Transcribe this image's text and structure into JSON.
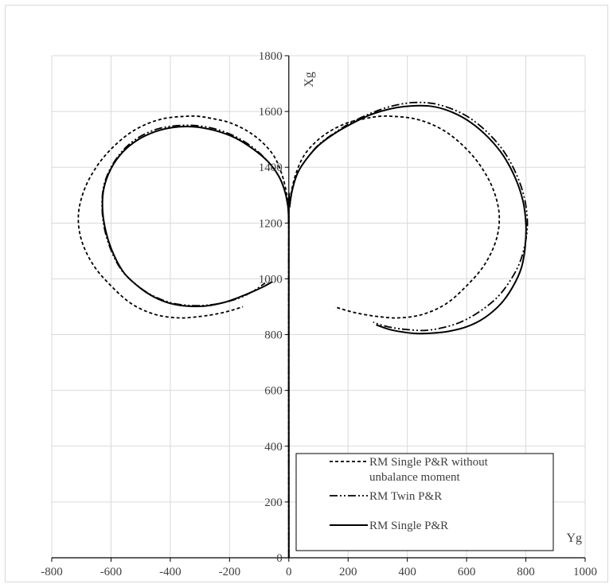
{
  "chart_data": {
    "type": "line",
    "xlabel": "Yg",
    "ylabel": "Xg",
    "xlim": [
      -800,
      1000
    ],
    "ylim": [
      0,
      1800
    ],
    "x_ticks": [
      -800,
      -600,
      -400,
      -200,
      0,
      200,
      400,
      600,
      800,
      1000
    ],
    "y_ticks": [
      0,
      200,
      400,
      600,
      800,
      1000,
      1200,
      1400,
      1600,
      1800
    ],
    "x_tick_labels": [
      "-800",
      "-600",
      "-400",
      "-200",
      "0",
      "200",
      "400",
      "600",
      "800",
      "1000"
    ],
    "y_tick_labels": [
      "0",
      "200",
      "400",
      "600",
      "800",
      "1000",
      "1200",
      "1400",
      "1600",
      "1800"
    ],
    "grid": true,
    "legend_position": "bottom-right",
    "series": [
      {
        "name": "RM Single P&R without unbalance moment",
        "style": "dashed",
        "color": "#000000",
        "branches": [
          {
            "x": [
              0,
              0,
              2,
              10,
              25,
              50,
              90,
              140,
              200,
              260,
              310,
              360,
              420,
              480,
              540,
              600,
              650,
              690,
              710,
              700,
              660,
              600,
              530,
              450,
              370,
              300,
              240,
              190,
              155
            ],
            "y": [
              0,
              1200,
              1260,
              1320,
              1380,
              1440,
              1490,
              1530,
              1560,
              1575,
              1583,
              1582,
              1575,
              1555,
              1520,
              1465,
              1400,
              1320,
              1230,
              1140,
              1050,
              975,
              910,
              872,
              860,
              865,
              875,
              888,
              900
            ]
          },
          {
            "x": [
              0,
              -2,
              -10,
              -25,
              -50,
              -90,
              -140,
              -200,
              -260,
              -310,
              -360,
              -420,
              -480,
              -540,
              -600,
              -650,
              -690,
              -710,
              -700,
              -660,
              -600,
              -530,
              -450,
              -370,
              -300,
              -240,
              -190,
              -155
            ],
            "y": [
              1200,
              1260,
              1320,
              1380,
              1440,
              1490,
              1530,
              1560,
              1575,
              1583,
              1582,
              1575,
              1555,
              1520,
              1465,
              1400,
              1320,
              1230,
              1140,
              1050,
              975,
              910,
              872,
              860,
              865,
              875,
              888,
              900
            ]
          }
        ]
      },
      {
        "name": "RM Twin P&R",
        "style": "dash-dot-dot",
        "color": "#000000",
        "branches": [
          {
            "x": [
              0,
              0,
              3,
              12,
              30,
              60,
              100,
              150,
              210,
              280,
              350,
              420,
              490,
              560,
              620,
              680,
              730,
              770,
              795,
              805,
              800,
              780,
              745,
              700,
              640,
              580,
              520,
              460,
              400,
              350,
              310,
              285
            ],
            "y": [
              0,
              1200,
              1260,
              1320,
              1380,
              1430,
              1480,
              1520,
              1560,
              1595,
              1620,
              1632,
              1628,
              1605,
              1570,
              1515,
              1450,
              1370,
              1290,
              1210,
              1140,
              1060,
              990,
              930,
              880,
              845,
              825,
              815,
              818,
              825,
              835,
              845
            ]
          },
          {
            "x": [
              0,
              -3,
              -15,
              -35,
              -70,
              -120,
              -180,
              -250,
              -320,
              -390,
              -450,
              -510,
              -560,
              -600,
              -625,
              -630,
              -620,
              -595,
              -560,
              -510,
              -460,
              -400,
              -340,
              -280,
              -220,
              -170,
              -130,
              -100,
              -80
            ],
            "y": [
              1200,
              1260,
              1320,
              1370,
              1420,
              1470,
              1510,
              1538,
              1550,
              1548,
              1535,
              1505,
              1460,
              1400,
              1330,
              1250,
              1170,
              1090,
              1025,
              975,
              940,
              915,
              905,
              905,
              915,
              930,
              950,
              970,
              985
            ]
          }
        ]
      },
      {
        "name": "RM Single P&R",
        "style": "solid",
        "color": "#000000",
        "branches": [
          {
            "x": [
              0,
              0,
              3,
              12,
              30,
              60,
              100,
              150,
              210,
              275,
              345,
              415,
              485,
              550,
              615,
              675,
              725,
              765,
              790,
              800,
              798,
              785,
              755,
              715,
              660,
              600,
              540,
              480,
              430,
              380,
              335,
              295
            ],
            "y": [
              0,
              1200,
              1260,
              1320,
              1380,
              1430,
              1478,
              1518,
              1555,
              1588,
              1610,
              1620,
              1618,
              1598,
              1560,
              1505,
              1440,
              1360,
              1280,
              1200,
              1120,
              1040,
              970,
              910,
              860,
              828,
              812,
              805,
              804,
              810,
              820,
              835
            ]
          },
          {
            "x": [
              0,
              -3,
              -15,
              -35,
              -70,
              -120,
              -180,
              -250,
              -320,
              -390,
              -450,
              -510,
              -560,
              -600,
              -625,
              -628,
              -615,
              -590,
              -555,
              -505,
              -455,
              -400,
              -340,
              -280,
              -220,
              -165,
              -120,
              -80,
              -55
            ],
            "y": [
              1200,
              1260,
              1320,
              1370,
              1420,
              1465,
              1505,
              1532,
              1545,
              1543,
              1528,
              1498,
              1455,
              1395,
              1320,
              1240,
              1160,
              1085,
              1020,
              970,
              935,
              912,
              902,
              903,
              915,
              935,
              955,
              975,
              990
            ]
          }
        ]
      }
    ]
  }
}
